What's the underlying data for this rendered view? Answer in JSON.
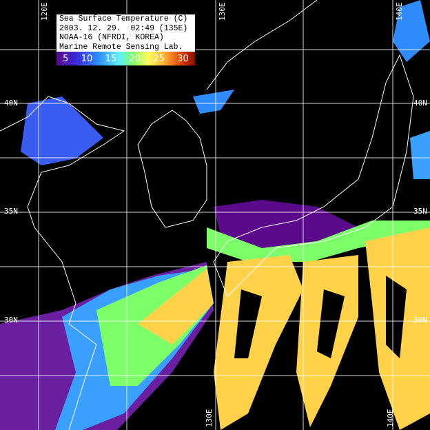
{
  "legend": {
    "title": "Sea Surface Temperature (C)",
    "datetime": "2003. 12. 29.  02:49 (135E)",
    "satellite": "NOAA-16 (NFRDI, KOREA)",
    "lab": "Marine Remote Sensing Lab.",
    "scale_ticks": [
      "5",
      "10",
      "15",
      "20",
      "25",
      "30"
    ],
    "scale_colors": [
      "#5a0a8a",
      "#2f8cff",
      "#5ff0ff",
      "#7dff6a",
      "#ffd24a",
      "#e04008"
    ]
  },
  "grid_labels": {
    "top": [
      "120E",
      "130E",
      "140E"
    ],
    "bottom": [
      "130E",
      "140E"
    ],
    "left": [
      "40N",
      "35N",
      "30N"
    ],
    "right": [
      "40N",
      "35N",
      "30N"
    ]
  }
}
